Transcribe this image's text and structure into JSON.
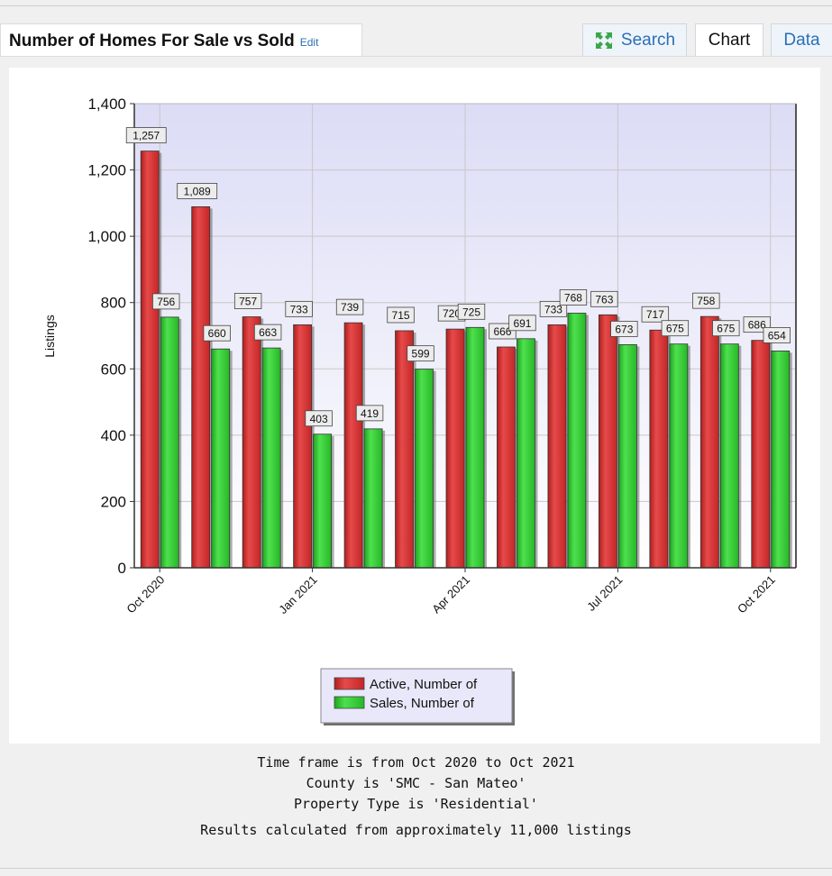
{
  "header": {
    "title": "Number of Homes For Sale vs Sold",
    "edit_label": "Edit",
    "tabs": [
      {
        "label": "Search",
        "icon": "expand-icon"
      },
      {
        "label": "Chart"
      },
      {
        "label": "Data"
      }
    ]
  },
  "chart_data": {
    "type": "bar",
    "ylabel": "Listings",
    "ylim": [
      0,
      1400
    ],
    "yticks": [
      "0",
      "200",
      "400",
      "600",
      "800",
      "1,000",
      "1,200",
      "1,400"
    ],
    "x_tick_labels": [
      "Oct 2020",
      "Jan 2021",
      "Apr 2021",
      "Jul 2021",
      "Oct 2021"
    ],
    "categories": [
      "Oct 2020",
      "Nov 2020",
      "Dec 2020",
      "Jan 2021",
      "Feb 2021",
      "Mar 2021",
      "Apr 2021",
      "May 2021",
      "Jun 2021",
      "Jul 2021",
      "Aug 2021",
      "Sep 2021",
      "Oct 2021"
    ],
    "series": [
      {
        "name": "Active, Number of",
        "color": "#d42a2a",
        "values": [
          1257,
          1089,
          757,
          733,
          739,
          715,
          720,
          666,
          733,
          763,
          717,
          758,
          686
        ],
        "labels": [
          "1,257",
          "1,089",
          "757",
          "733",
          "739",
          "715",
          "720",
          "666",
          "733",
          "763",
          "717",
          "758",
          "686"
        ]
      },
      {
        "name": "Sales, Number of",
        "color": "#2ec42e",
        "values": [
          756,
          660,
          663,
          403,
          419,
          599,
          725,
          691,
          768,
          673,
          675,
          675,
          654
        ],
        "labels": [
          "756",
          "660",
          "663",
          "403",
          "419",
          "599",
          "725",
          "691",
          "768",
          "673",
          "675",
          "675",
          "654"
        ]
      }
    ],
    "grid": true,
    "legend": "bottom-center"
  },
  "footer": {
    "timeframe": "Time frame is from Oct 2020 to Oct 2021",
    "county": "County is 'SMC - San Mateo'",
    "property_type": "Property Type is 'Residential'",
    "results": "Results calculated from approximately 11,000 listings"
  }
}
